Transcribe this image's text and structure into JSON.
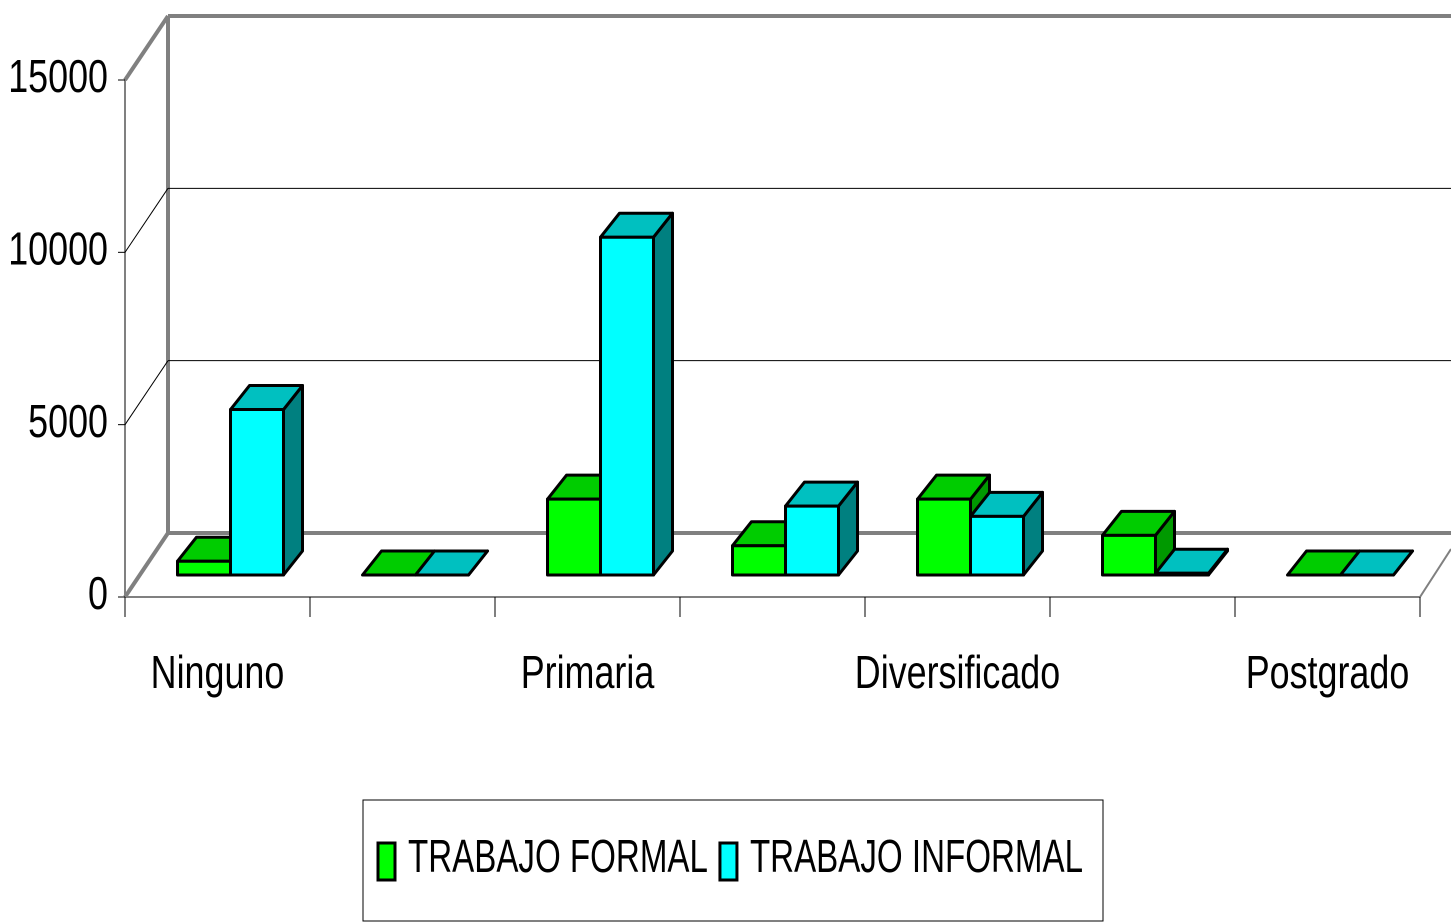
{
  "chart_data": {
    "type": "bar3d",
    "categories": [
      "Ninguno",
      null,
      "Primaria",
      null,
      "Diversificado",
      null,
      "Postgrado"
    ],
    "series": [
      {
        "name": "TRABAJO FORMAL",
        "color": "#00ff00",
        "values": [
          400,
          0,
          2200,
          850,
          2200,
          1150,
          0
        ]
      },
      {
        "name": "TRABAJO INFORMAL",
        "color": "#00ffff",
        "values": [
          4800,
          0,
          9800,
          2000,
          1700,
          50,
          0
        ]
      }
    ],
    "ylim": [
      0,
      15000
    ],
    "yticks": [
      0,
      5000,
      10000,
      15000
    ],
    "grid": true,
    "legend": "bottom"
  }
}
